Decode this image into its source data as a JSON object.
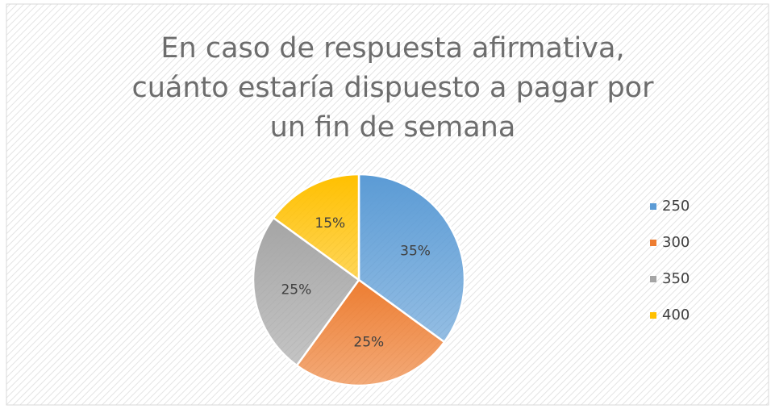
{
  "chart_data": {
    "type": "pie",
    "title": "En caso de respuesta afirmativa, cuánto estaría dispuesto a pagar por un fin de semana",
    "categories": [
      "250",
      "300",
      "350",
      "400"
    ],
    "values": [
      35,
      25,
      25,
      15
    ],
    "value_labels": [
      "35%",
      "25%",
      "25%",
      "15%"
    ],
    "colors": [
      "#5b9bd5",
      "#ed7d31",
      "#a5a5a5",
      "#ffc000"
    ],
    "legend": "right"
  }
}
